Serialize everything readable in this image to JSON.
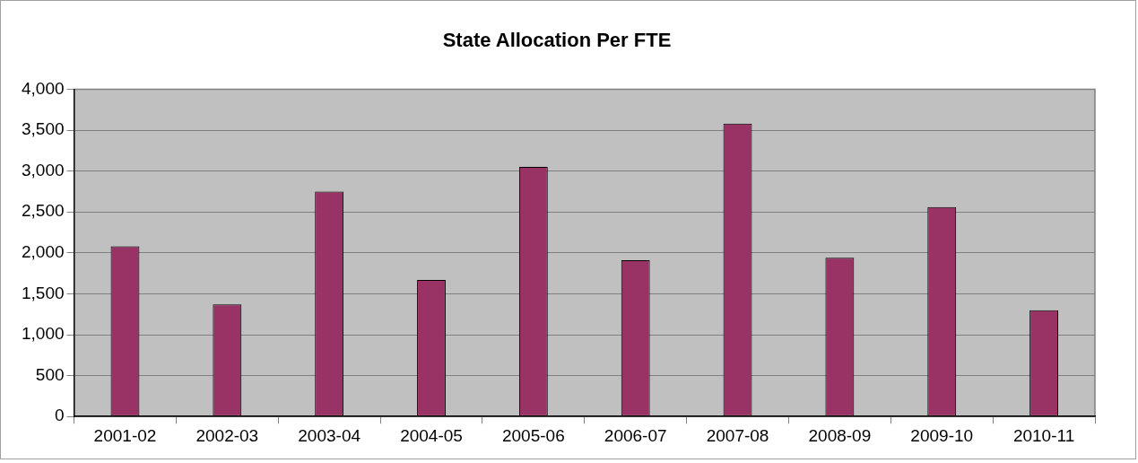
{
  "chart_data": {
    "type": "bar",
    "title": "State Allocation Per FTE",
    "categories": [
      "2001-02",
      "2002-03",
      "2003-04",
      "2004-05",
      "2005-06",
      "2006-07",
      "2007-08",
      "2008-09",
      "2009-10",
      "2010-11"
    ],
    "values": [
      2080,
      1370,
      2750,
      1670,
      3050,
      1910,
      3580,
      1940,
      2560,
      1300
    ],
    "color": "#993366",
    "ylim": [
      0,
      4000
    ],
    "yticks": [
      {
        "value": 0,
        "label": "0"
      },
      {
        "value": 500,
        "label": "500"
      },
      {
        "value": 1000,
        "label": "1,000"
      },
      {
        "value": 1500,
        "label": "1,500"
      },
      {
        "value": 2000,
        "label": "2,000"
      },
      {
        "value": 2500,
        "label": "2,500"
      },
      {
        "value": 3000,
        "label": "3,000"
      },
      {
        "value": 3500,
        "label": "3,500"
      },
      {
        "value": 4000,
        "label": "4,000"
      }
    ],
    "grid": "y",
    "legend": false
  }
}
